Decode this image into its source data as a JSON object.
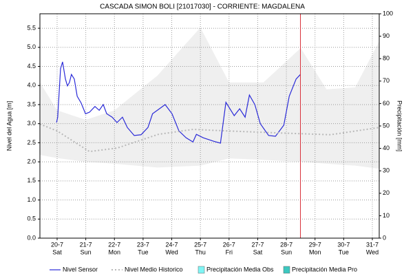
{
  "chart_data": {
    "type": "line",
    "title": "CASCADA SIMON BOLI [21017030] - CORRIENTE: MAGDALENA",
    "ylabel": "Nivel del Agua [m]",
    "y2label": "Precipitación [mm]",
    "xlim": [
      19.4,
      31.24
    ],
    "ylim": [
      0,
      5.88
    ],
    "y2lim": [
      0,
      100
    ],
    "grid": true,
    "now_x": 28.49,
    "now_color": "#d9303a",
    "xticks": [
      {
        "value": 20,
        "label": "20-7",
        "day": "Sat"
      },
      {
        "value": 21,
        "label": "21-7",
        "day": "Sun"
      },
      {
        "value": 22,
        "label": "22-7",
        "day": "Mon"
      },
      {
        "value": 23,
        "label": "23-7",
        "day": "Tue"
      },
      {
        "value": 24,
        "label": "24-7",
        "day": "Wed"
      },
      {
        "value": 25,
        "label": "25-7",
        "day": "Thu"
      },
      {
        "value": 26,
        "label": "26-7",
        "day": "Fri"
      },
      {
        "value": 27,
        "label": "27-7",
        "day": "Sat"
      },
      {
        "value": 28,
        "label": "28-7",
        "day": "Sun"
      },
      {
        "value": 29,
        "label": "29-7",
        "day": "Mon"
      },
      {
        "value": 30,
        "label": "30-7",
        "day": "Tue"
      },
      {
        "value": 31,
        "label": "31-7",
        "day": "Wed"
      }
    ],
    "yticks": [
      {
        "value": 0,
        "label": "0.0"
      },
      0.5,
      {
        "value": 1,
        "label": "1.0"
      },
      1.5,
      {
        "value": 2,
        "label": "2.0"
      },
      2.5,
      {
        "value": 3,
        "label": "3.0"
      },
      3.5,
      {
        "value": 4,
        "label": "4.0"
      },
      4.5,
      {
        "value": 5,
        "label": "5.0"
      },
      5.5
    ],
    "y2ticks": [
      0,
      10,
      20,
      30,
      40,
      50,
      60,
      70,
      80,
      90,
      100
    ],
    "band": {
      "color": "#efefef",
      "x": [
        19.4,
        20,
        21,
        22,
        23.5,
        25,
        26,
        27.2,
        28.5,
        29.4,
        30.4,
        31.24
      ],
      "upper": [
        4.08,
        3.35,
        3.1,
        3.35,
        4.26,
        5.52,
        4.08,
        4.08,
        4.98,
        3.9,
        3.95,
        5.16
      ],
      "lower": [
        2.18,
        2.1,
        2.0,
        1.95,
        1.85,
        1.9,
        2.09,
        2.05,
        2.0,
        1.95,
        1.9,
        1.82
      ]
    },
    "series": [
      {
        "name": "Nivel Sensor",
        "color": "#2a2ad8",
        "style": "solid",
        "x": [
          19.98,
          20.02,
          20.12,
          20.19,
          20.29,
          20.36,
          20.43,
          20.5,
          20.6,
          20.7,
          20.84,
          20.99,
          21.13,
          21.32,
          21.47,
          21.61,
          21.73,
          21.92,
          22.09,
          22.28,
          22.45,
          22.69,
          22.93,
          23.17,
          23.33,
          23.77,
          24.01,
          24.25,
          24.5,
          24.74,
          24.86,
          25.1,
          25.46,
          25.7,
          25.89,
          26.18,
          26.37,
          26.56,
          26.71,
          26.9,
          27.09,
          27.38,
          27.62,
          27.91,
          28.1,
          28.34,
          28.49
        ],
        "values": [
          3.03,
          3.17,
          4.44,
          4.62,
          4.17,
          3.99,
          4.08,
          4.29,
          4.17,
          3.72,
          3.54,
          3.26,
          3.3,
          3.45,
          3.35,
          3.5,
          3.26,
          3.17,
          3.03,
          3.17,
          2.9,
          2.69,
          2.71,
          2.9,
          3.26,
          3.5,
          3.26,
          2.81,
          2.63,
          2.52,
          2.72,
          2.63,
          2.54,
          2.49,
          3.56,
          3.21,
          3.39,
          3.17,
          3.75,
          3.5,
          3.0,
          2.69,
          2.67,
          2.96,
          3.72,
          4.17,
          4.29
        ]
      },
      {
        "name": "Nivel Medio Historico",
        "color": "#b8b8b8",
        "style": "dotted",
        "x": [
          19.4,
          20,
          21.13,
          22.09,
          23.53,
          24.74,
          25.94,
          27.62,
          29.54,
          31.24
        ],
        "values": [
          2.99,
          2.81,
          2.27,
          2.36,
          2.72,
          2.85,
          2.81,
          2.76,
          2.71,
          2.9
        ]
      },
      {
        "name": "Precipitación Media Obs",
        "color": "#7ff5f5",
        "style": "box",
        "axis": "y2",
        "x": [],
        "values": []
      },
      {
        "name": "Precipitación Media Pro",
        "color": "#3cc8c0",
        "style": "box",
        "axis": "y2",
        "x": [],
        "values": []
      }
    ]
  }
}
